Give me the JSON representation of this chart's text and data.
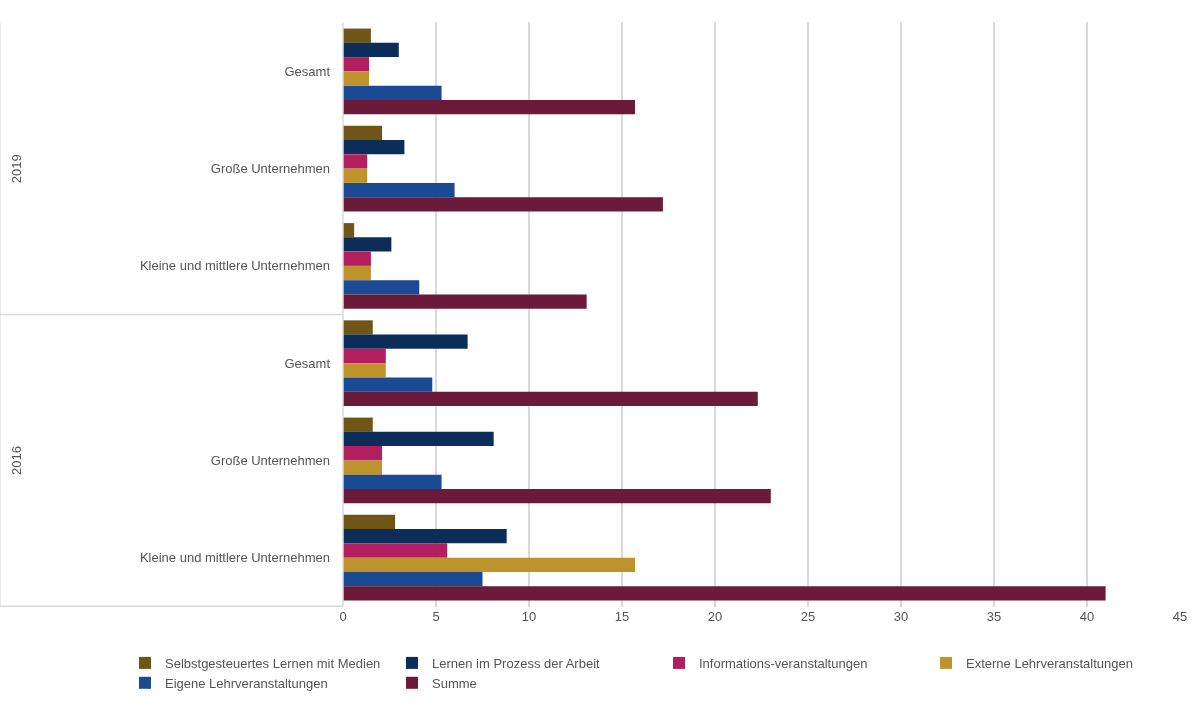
{
  "chart_data": {
    "type": "bar",
    "orientation": "horizontal",
    "categories": [
      "Gesamt",
      "Große Unternehmen",
      "Kleine und mittlere Unternehmen",
      "Gesamt",
      "Große Unternehmen",
      "Kleine und mittlere Unternehmen"
    ],
    "annotations": [
      "2019",
      "2016"
    ],
    "series": [
      {
        "name": "Selbstgesteuertes Lernen mit Medien",
        "color": "#6f5616",
        "values": [
          1.5,
          2.1,
          0.6,
          1.6,
          1.6,
          2.8
        ]
      },
      {
        "name": "Lernen im Prozess der Arbeit",
        "color": "#0c2c5a",
        "values": [
          3.0,
          3.3,
          2.6,
          6.7,
          8.1,
          8.8
        ]
      },
      {
        "name": "Informations-veranstaltungen",
        "color": "#b31f5e",
        "values": [
          1.4,
          1.3,
          1.5,
          2.3,
          2.1,
          5.6
        ]
      },
      {
        "name": "Externe Lehrveranstaltungen",
        "color": "#be932b",
        "values": [
          1.4,
          1.3,
          1.5,
          2.3,
          2.1,
          15.7
        ]
      },
      {
        "name": "Eigene Lehrveranstaltungen",
        "color": "#1a4a94",
        "values": [
          5.3,
          6.0,
          4.1,
          4.8,
          5.3,
          7.5
        ]
      },
      {
        "name": "Summe",
        "color": "#6b1a3a",
        "values": [
          15.7,
          17.2,
          13.1,
          22.3,
          23.0,
          41.0
        ]
      }
    ],
    "xlim": [
      0,
      45
    ],
    "xticks": [
      0,
      5,
      10,
      15,
      20,
      25,
      30,
      35,
      40,
      45
    ],
    "grid": "x",
    "legend": "bottom"
  }
}
